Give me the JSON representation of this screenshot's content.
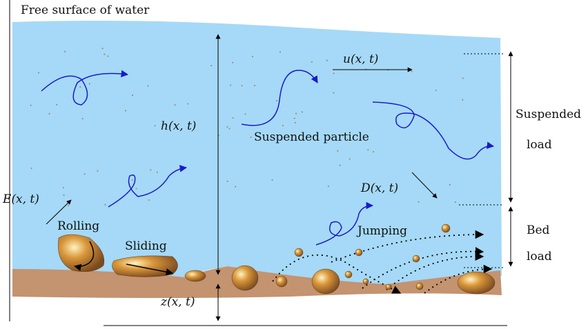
{
  "surface_label": "Free surface of water",
  "labels": {
    "u": "u(x, t)",
    "h": "h(x, t)",
    "suspended_particle": "Suspended particle",
    "suspended_load": [
      "Suspended",
      "load"
    ],
    "E": "E(x, t)",
    "D": "D(x, t)",
    "rolling": "Rolling",
    "sliding": "Sliding",
    "jumping": "Jumping",
    "bed_load": [
      "Bed",
      "load"
    ],
    "z": "z(x, t)"
  }
}
